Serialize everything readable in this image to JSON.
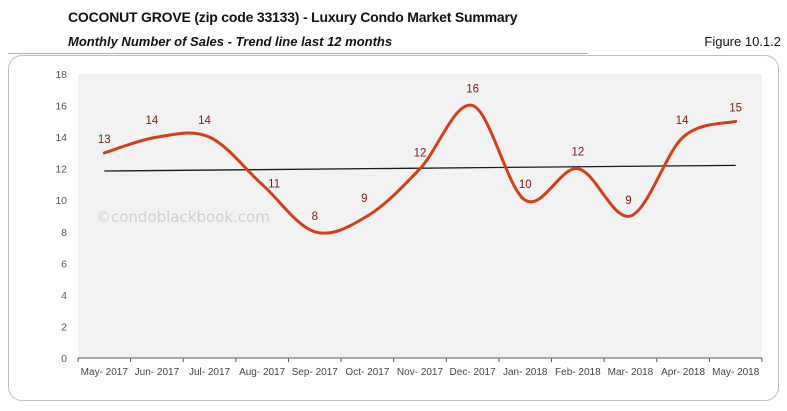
{
  "header": {
    "title": "COCONUT GROVE (zip code 33133) - Luxury Condo Market Summary",
    "subtitle": "Monthly Number of Sales - Trend line last 12 months",
    "figure": "Figure 10.1.2"
  },
  "watermark": "©condoblackbook.com",
  "colors": {
    "series": "#d2401a",
    "trend": "#1a1a1a",
    "plot_bg": "#f2f2f2",
    "data_label": "#7a1a1a"
  },
  "chart_data": {
    "type": "line",
    "title": "Monthly Number of Sales - Trend line last 12 months",
    "xlabel": "",
    "ylabel": "",
    "ylim": [
      0,
      18
    ],
    "yticks": [
      0,
      2,
      4,
      6,
      8,
      10,
      12,
      14,
      16,
      18
    ],
    "grid": false,
    "legend": "none",
    "categories": [
      "May- 2017",
      "Jun- 2017",
      "Jul- 2017",
      "Aug- 2017",
      "Sep- 2017",
      "Oct- 2017",
      "Nov- 2017",
      "Dec- 2017",
      "Jan- 2018",
      "Feb- 2018",
      "Mar- 2018",
      "Apr- 2018",
      "May- 2018"
    ],
    "series": [
      {
        "name": "Number of Sales",
        "values": [
          13,
          14,
          14,
          11,
          8,
          9,
          12,
          16,
          10,
          12,
          9,
          14,
          15
        ],
        "smooth": true
      },
      {
        "name": "Linear trend",
        "values": [
          11.85,
          11.88,
          11.91,
          11.94,
          11.97,
          12.0,
          12.03,
          12.06,
          12.09,
          12.12,
          12.15,
          12.18,
          12.21
        ],
        "style": "trendline"
      }
    ]
  }
}
